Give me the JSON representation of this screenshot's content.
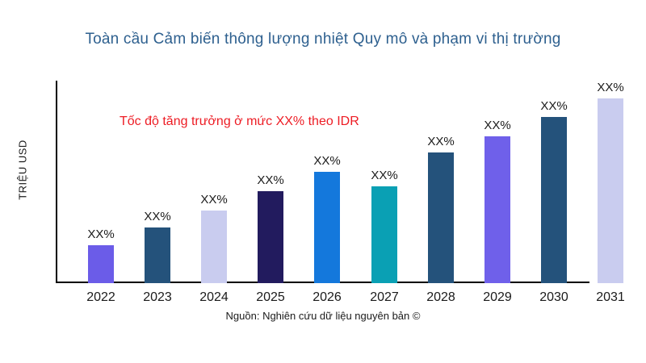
{
  "title": "Toàn cầu Cảm biến thông lượng nhiệt Quy mô và phạm vi thị trường",
  "annotation": "Tốc độ tăng trưởng ở mức XX% theo IDR",
  "y_axis_label": "TRIỆU USD",
  "source": "Nguồn: Nghiên cứu dữ liệu nguyên bản ©",
  "colors": {
    "title": "#2E608F",
    "annotation": "#ED1C24",
    "axis": "#000000",
    "text": "#1A1A1A",
    "background": "#FFFFFF"
  },
  "chart_data": {
    "type": "bar",
    "title": "Toàn cầu Cảm biến thông lượng nhiệt Quy mô và phạm vi thị trường",
    "xlabel": "",
    "ylabel": "TRIỆU USD",
    "categories": [
      "2022",
      "2023",
      "2024",
      "2025",
      "2026",
      "2027",
      "2028",
      "2029",
      "2030",
      "2031"
    ],
    "value_labels": [
      "XX%",
      "XX%",
      "XX%",
      "XX%",
      "XX%",
      "XX%",
      "XX%",
      "XX%",
      "XX%",
      "XX%"
    ],
    "relative_heights": [
      0.188,
      0.276,
      0.36,
      0.456,
      0.552,
      0.48,
      0.648,
      0.728,
      0.824,
      0.916
    ],
    "bar_colors": [
      "#6B5CE8",
      "#24527B",
      "#C9CCEF",
      "#221B5E",
      "#1478DC",
      "#0AA0B4",
      "#24527B",
      "#6F60EA",
      "#24527B",
      "#C9CCEF"
    ],
    "annotation": "Tốc độ tăng trưởng ở mức XX% theo IDR",
    "legend": "none",
    "grid": "off",
    "source": "Nguồn: Nghiên cứu dữ liệu nguyên bản ©"
  }
}
